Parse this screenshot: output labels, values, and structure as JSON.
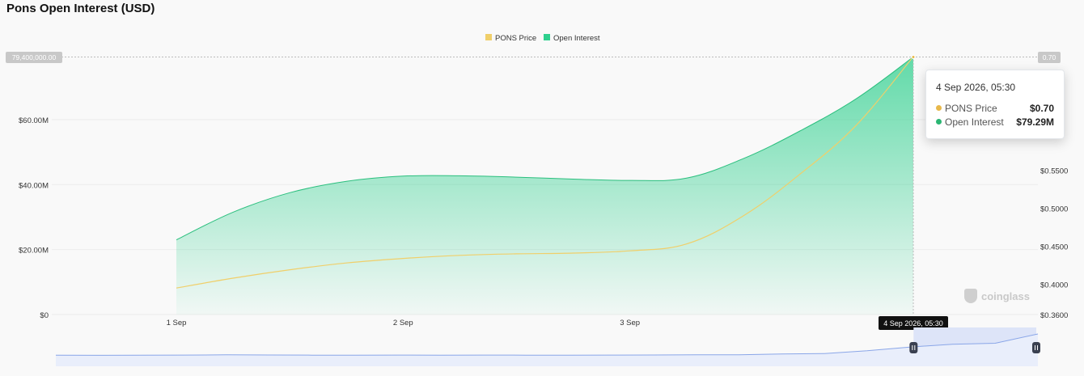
{
  "title": "Pons Open Interest (USD)",
  "tooltip": {
    "date": "4 Sep 2026, 05:30",
    "rows": [
      {
        "name": "PONS Price",
        "value": "$0.70",
        "color": "#e8b84a"
      },
      {
        "name": "Open Interest",
        "value": "$79.29M",
        "color": "#2bb673"
      }
    ]
  },
  "crosshair": {
    "x_label": "4 Sep 2026, 05:30",
    "left_label": "79,400,000.00",
    "right_label": "0.70"
  },
  "watermark": "coinglass",
  "colors": {
    "price": "#f0cf6a",
    "oi_fill": "#2fd08e",
    "oi_line": "#2bbf7e",
    "navigator": "#8aa6e8",
    "navigator_selection": "#dde4f8"
  },
  "chart_data": {
    "type": "area",
    "title": "Pons Open Interest (USD)",
    "legend": {
      "position": "top-center",
      "entries": [
        "PONS Price",
        "Open Interest"
      ]
    },
    "x": [
      "2026-09-01 00:00",
      "2026-09-01 06:00",
      "2026-09-01 12:00",
      "2026-09-01 18:00",
      "2026-09-02 00:00",
      "2026-09-02 06:00",
      "2026-09-02 12:00",
      "2026-09-02 18:00",
      "2026-09-03 00:00",
      "2026-09-03 06:00",
      "2026-09-03 12:00",
      "2026-09-03 18:00",
      "2026-09-04 00:00",
      "2026-09-04 05:30"
    ],
    "x_ticks": [
      "1 Sep",
      "2 Sep",
      "3 Sep"
    ],
    "grid": true,
    "series": [
      {
        "name": "Open Interest",
        "axis": "left",
        "type": "area",
        "values": [
          23000000,
          31500000,
          37500000,
          41000000,
          42600000,
          42700000,
          42300000,
          41700000,
          41300000,
          42000000,
          48000000,
          56500000,
          66500000,
          79290000
        ]
      },
      {
        "name": "PONS Price",
        "axis": "right",
        "type": "line",
        "values": [
          0.395,
          0.408,
          0.419,
          0.428,
          0.434,
          0.438,
          0.44,
          0.441,
          0.444,
          0.453,
          0.49,
          0.545,
          0.61,
          0.7
        ]
      }
    ],
    "y_left": {
      "ticks": [
        "$0",
        "$20.00M",
        "$40.00M",
        "$60.00M"
      ],
      "ylim": [
        0,
        79400000
      ]
    },
    "y_right": {
      "ticks": [
        "$0.3600",
        "$0.4000",
        "$0.4500",
        "$0.5000",
        "$0.5500"
      ],
      "ylim": [
        0.36,
        0.7
      ]
    },
    "navigator": {
      "values": [
        0.32,
        0.31,
        0.33,
        0.34,
        0.36,
        0.35,
        0.33,
        0.33,
        0.34,
        0.32,
        0.34,
        0.33,
        0.33,
        0.34,
        0.35,
        0.36,
        0.37,
        0.45,
        0.5,
        0.8,
        1.2,
        1.5,
        1.6,
        2.6
      ],
      "selection_range": [
        0.88,
        1.0
      ]
    }
  }
}
